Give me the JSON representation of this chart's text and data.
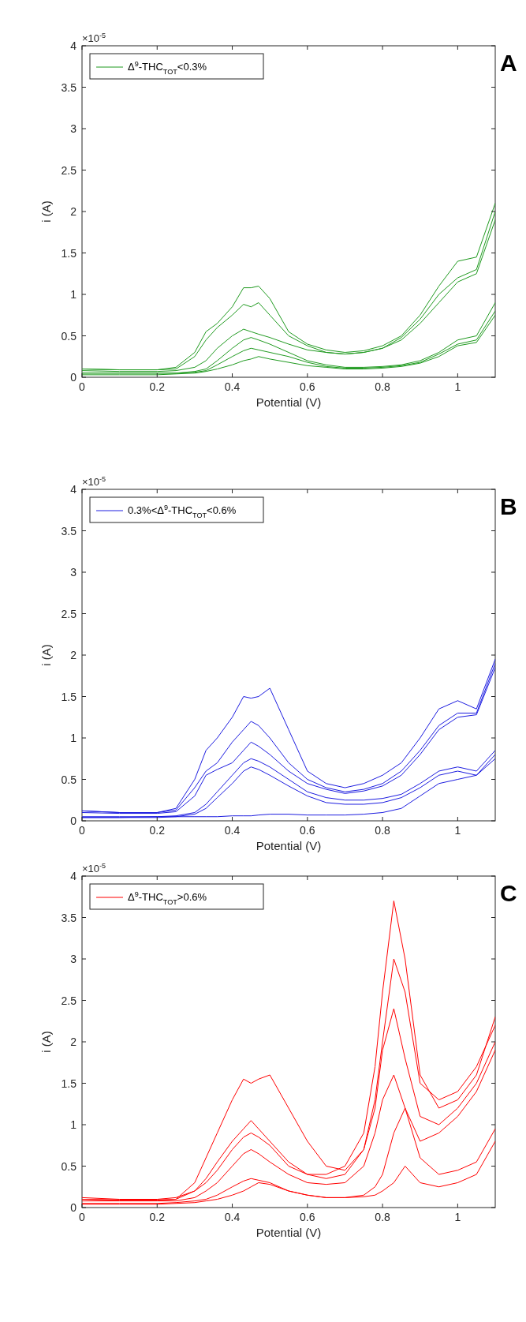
{
  "chart_data": [
    {
      "type": "line",
      "xlabel": "Potential (V)",
      "ylabel": "i (A)",
      "annotations": [
        "×10$^{-5}$",
        "A"
      ],
      "xlim": [
        0,
        1.1
      ],
      "xticks": [
        0,
        0.2,
        0.4,
        0.6,
        0.8,
        1
      ],
      "ylim": [
        0,
        4
      ],
      "yticks": [
        0,
        0.5,
        1,
        1.5,
        2,
        2.5,
        3,
        3.5,
        4
      ],
      "legend": "top left",
      "x": [
        0,
        0.1,
        0.2,
        0.25,
        0.3,
        0.33,
        0.36,
        0.4,
        0.43,
        0.45,
        0.47,
        0.5,
        0.55,
        0.6,
        0.65,
        0.7,
        0.75,
        0.8,
        0.85,
        0.9,
        0.95,
        1.0,
        1.05,
        1.1
      ],
      "series": [
        {
          "name": "Δ$^{9}$-THC$_{TOT}$<0.3%",
          "color": "#1f9a1f",
          "values": [
            0.1,
            0.09,
            0.09,
            0.12,
            0.3,
            0.55,
            0.65,
            0.85,
            1.08,
            1.08,
            1.1,
            0.95,
            0.55,
            0.4,
            0.33,
            0.3,
            0.32,
            0.38,
            0.5,
            0.75,
            1.1,
            1.4,
            1.45,
            2.1
          ]
        },
        {
          "color": "#1f9a1f",
          "values": [
            0.1,
            0.09,
            0.09,
            0.1,
            0.25,
            0.45,
            0.6,
            0.75,
            0.88,
            0.85,
            0.9,
            0.75,
            0.5,
            0.38,
            0.3,
            0.28,
            0.3,
            0.35,
            0.48,
            0.7,
            1.0,
            1.2,
            1.3,
            2.0
          ]
        },
        {
          "color": "#1f9a1f",
          "values": [
            0.08,
            0.07,
            0.07,
            0.08,
            0.12,
            0.2,
            0.35,
            0.5,
            0.58,
            0.55,
            0.52,
            0.48,
            0.4,
            0.33,
            0.3,
            0.28,
            0.3,
            0.35,
            0.45,
            0.65,
            0.9,
            1.15,
            1.25,
            1.9
          ]
        },
        {
          "color": "#1f9a1f",
          "values": [
            0.05,
            0.05,
            0.05,
            0.05,
            0.07,
            0.1,
            0.2,
            0.35,
            0.45,
            0.48,
            0.45,
            0.4,
            0.3,
            0.2,
            0.15,
            0.12,
            0.12,
            0.13,
            0.15,
            0.2,
            0.3,
            0.45,
            0.5,
            0.9
          ]
        },
        {
          "color": "#1f9a1f",
          "values": [
            0.05,
            0.05,
            0.05,
            0.05,
            0.06,
            0.08,
            0.15,
            0.25,
            0.32,
            0.35,
            0.33,
            0.3,
            0.25,
            0.18,
            0.13,
            0.11,
            0.11,
            0.12,
            0.14,
            0.18,
            0.28,
            0.4,
            0.45,
            0.8
          ]
        },
        {
          "color": "#1f9a1f",
          "values": [
            0.03,
            0.03,
            0.03,
            0.04,
            0.05,
            0.07,
            0.1,
            0.15,
            0.2,
            0.22,
            0.25,
            0.22,
            0.18,
            0.14,
            0.12,
            0.1,
            0.1,
            0.11,
            0.13,
            0.17,
            0.25,
            0.38,
            0.42,
            0.75
          ]
        }
      ]
    },
    {
      "type": "line",
      "xlabel": "Potential (V)",
      "ylabel": "i (A)",
      "annotations": [
        "×10$^{-5}$",
        "B"
      ],
      "xlim": [
        0,
        1.1
      ],
      "xticks": [
        0,
        0.2,
        0.4,
        0.6,
        0.8,
        1
      ],
      "ylim": [
        0,
        4
      ],
      "yticks": [
        0,
        0.5,
        1,
        1.5,
        2,
        2.5,
        3,
        3.5,
        4
      ],
      "legend": "top left",
      "x": [
        0,
        0.1,
        0.2,
        0.25,
        0.3,
        0.33,
        0.36,
        0.4,
        0.43,
        0.45,
        0.47,
        0.5,
        0.55,
        0.6,
        0.65,
        0.7,
        0.75,
        0.8,
        0.85,
        0.9,
        0.95,
        1.0,
        1.05,
        1.1
      ],
      "series": [
        {
          "name": "0.3%<Δ$^{9}$-THC$_{TOT}$<0.6%",
          "color": "#1c1ce0",
          "values": [
            0.12,
            0.1,
            0.1,
            0.15,
            0.5,
            0.85,
            1.0,
            1.25,
            1.5,
            1.48,
            1.5,
            1.6,
            1.1,
            0.6,
            0.45,
            0.4,
            0.45,
            0.55,
            0.7,
            1.0,
            1.35,
            1.45,
            1.35,
            1.95
          ]
        },
        {
          "color": "#1c1ce0",
          "values": [
            0.12,
            0.1,
            0.1,
            0.13,
            0.4,
            0.6,
            0.7,
            0.95,
            1.1,
            1.2,
            1.15,
            1.0,
            0.7,
            0.5,
            0.4,
            0.35,
            0.38,
            0.45,
            0.6,
            0.85,
            1.15,
            1.3,
            1.3,
            1.9
          ]
        },
        {
          "color": "#1c1ce0",
          "values": [
            0.1,
            0.09,
            0.09,
            0.11,
            0.3,
            0.55,
            0.62,
            0.7,
            0.85,
            0.95,
            0.9,
            0.8,
            0.6,
            0.45,
            0.38,
            0.33,
            0.36,
            0.42,
            0.55,
            0.8,
            1.1,
            1.25,
            1.28,
            1.85
          ]
        },
        {
          "color": "#1c1ce0",
          "values": [
            0.05,
            0.05,
            0.05,
            0.06,
            0.1,
            0.2,
            0.35,
            0.55,
            0.7,
            0.75,
            0.72,
            0.65,
            0.5,
            0.35,
            0.28,
            0.25,
            0.25,
            0.27,
            0.32,
            0.45,
            0.6,
            0.65,
            0.6,
            0.85
          ]
        },
        {
          "color": "#1c1ce0",
          "values": [
            0.04,
            0.04,
            0.04,
            0.05,
            0.08,
            0.15,
            0.28,
            0.45,
            0.6,
            0.65,
            0.62,
            0.55,
            0.42,
            0.3,
            0.22,
            0.2,
            0.2,
            0.22,
            0.28,
            0.4,
            0.55,
            0.6,
            0.55,
            0.8
          ]
        },
        {
          "color": "#1c1ce0",
          "values": [
            0.04,
            0.04,
            0.05,
            0.05,
            0.05,
            0.05,
            0.05,
            0.06,
            0.06,
            0.06,
            0.07,
            0.08,
            0.08,
            0.07,
            0.07,
            0.07,
            0.08,
            0.1,
            0.15,
            0.3,
            0.45,
            0.5,
            0.55,
            0.75
          ]
        }
      ]
    },
    {
      "type": "line",
      "xlabel": "Potential (V)",
      "ylabel": "i (A)",
      "annotations": [
        "×10$^{-5}$",
        "C"
      ],
      "xlim": [
        0,
        1.1
      ],
      "xticks": [
        0,
        0.2,
        0.4,
        0.6,
        0.8,
        1
      ],
      "ylim": [
        0,
        4
      ],
      "yticks": [
        0,
        0.5,
        1,
        1.5,
        2,
        2.5,
        3,
        3.5,
        4
      ],
      "legend": "top left",
      "x": [
        0,
        0.1,
        0.2,
        0.25,
        0.3,
        0.33,
        0.36,
        0.4,
        0.43,
        0.45,
        0.47,
        0.5,
        0.55,
        0.6,
        0.65,
        0.7,
        0.75,
        0.78,
        0.8,
        0.83,
        0.86,
        0.9,
        0.95,
        1.0,
        1.05,
        1.1
      ],
      "series": [
        {
          "name": "Δ$^{9}$-THC$_{TOT}$>0.6%",
          "color": "#ff0000",
          "values": [
            0.12,
            0.1,
            0.1,
            0.12,
            0.2,
            0.3,
            0.45,
            0.7,
            0.85,
            0.9,
            0.85,
            0.75,
            0.5,
            0.4,
            0.4,
            0.5,
            0.9,
            1.7,
            2.6,
            3.7,
            3.0,
            1.6,
            1.2,
            1.3,
            1.6,
            2.3
          ]
        },
        {
          "color": "#ff0000",
          "values": [
            0.1,
            0.09,
            0.09,
            0.1,
            0.3,
            0.6,
            0.9,
            1.3,
            1.55,
            1.5,
            1.55,
            1.6,
            1.2,
            0.8,
            0.5,
            0.45,
            0.7,
            1.3,
            2.0,
            3.0,
            2.6,
            1.5,
            1.3,
            1.4,
            1.7,
            2.2
          ]
        },
        {
          "color": "#ff0000",
          "values": [
            0.1,
            0.09,
            0.09,
            0.1,
            0.2,
            0.35,
            0.55,
            0.8,
            0.95,
            1.05,
            0.95,
            0.8,
            0.55,
            0.4,
            0.35,
            0.4,
            0.7,
            1.2,
            1.9,
            2.4,
            1.8,
            1.1,
            1.0,
            1.2,
            1.5,
            2.0
          ]
        },
        {
          "color": "#ff0000",
          "values": [
            0.08,
            0.08,
            0.08,
            0.08,
            0.12,
            0.2,
            0.3,
            0.5,
            0.65,
            0.7,
            0.65,
            0.55,
            0.4,
            0.3,
            0.28,
            0.3,
            0.5,
            0.9,
            1.3,
            1.6,
            1.2,
            0.8,
            0.9,
            1.1,
            1.4,
            1.9
          ]
        },
        {
          "color": "#ff0000",
          "values": [
            0.05,
            0.05,
            0.05,
            0.06,
            0.08,
            0.1,
            0.15,
            0.25,
            0.32,
            0.35,
            0.33,
            0.3,
            0.2,
            0.15,
            0.12,
            0.12,
            0.15,
            0.25,
            0.4,
            0.9,
            1.2,
            0.6,
            0.4,
            0.45,
            0.55,
            0.95
          ]
        },
        {
          "color": "#ff0000",
          "values": [
            0.04,
            0.04,
            0.04,
            0.05,
            0.06,
            0.08,
            0.1,
            0.15,
            0.2,
            0.25,
            0.3,
            0.28,
            0.2,
            0.15,
            0.12,
            0.12,
            0.13,
            0.15,
            0.2,
            0.3,
            0.5,
            0.3,
            0.25,
            0.3,
            0.4,
            0.8
          ]
        }
      ]
    }
  ]
}
